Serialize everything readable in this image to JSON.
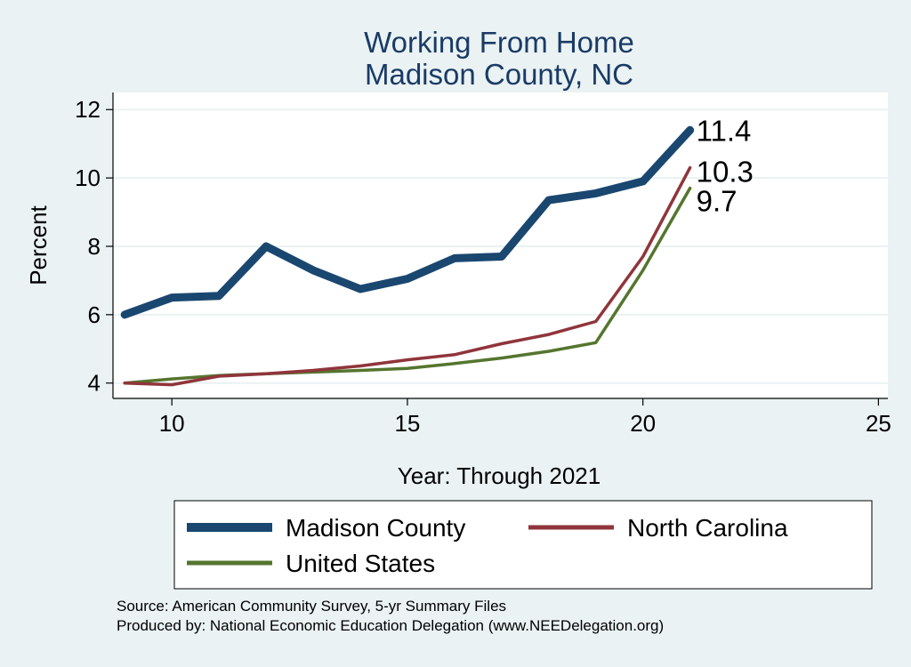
{
  "chart_data": {
    "type": "line",
    "title": "Working From Home",
    "subtitle": "Madison County, NC",
    "xlabel": "Year: Through 2021",
    "ylabel": "Percent",
    "xlim": [
      8.75,
      25.2
    ],
    "ylim": [
      3.55,
      12.5
    ],
    "xticks": [
      10,
      15,
      20,
      25
    ],
    "yticks": [
      4,
      6,
      8,
      10,
      12
    ],
    "grid": true,
    "legend_position": "bottom",
    "x": [
      9,
      10,
      11,
      12,
      13,
      14,
      15,
      16,
      17,
      18,
      19,
      20,
      21
    ],
    "series": [
      {
        "name": "Madison County",
        "color": "#1a476f",
        "weight": "thick",
        "values": [
          6.0,
          6.5,
          6.55,
          8.0,
          7.3,
          6.75,
          7.05,
          7.65,
          7.7,
          9.35,
          9.55,
          9.9,
          11.4
        ],
        "end_label": "11.4"
      },
      {
        "name": "North Carolina",
        "color": "#90353b",
        "weight": "medium",
        "values": [
          4.0,
          3.95,
          4.2,
          4.27,
          4.37,
          4.5,
          4.68,
          4.83,
          5.15,
          5.42,
          5.8,
          7.7,
          10.3
        ],
        "end_label": "10.3"
      },
      {
        "name": "United States",
        "color": "#55752f",
        "weight": "medium",
        "values": [
          4.0,
          4.12,
          4.22,
          4.27,
          4.32,
          4.37,
          4.43,
          4.57,
          4.73,
          4.93,
          5.18,
          7.3,
          9.7
        ],
        "end_label": "9.7"
      }
    ]
  },
  "notes": [
    "Source: American Community Survey, 5-yr Summary Files",
    "Produced by: National Economic Education Delegation (www.NEEDelegation.org)"
  ]
}
